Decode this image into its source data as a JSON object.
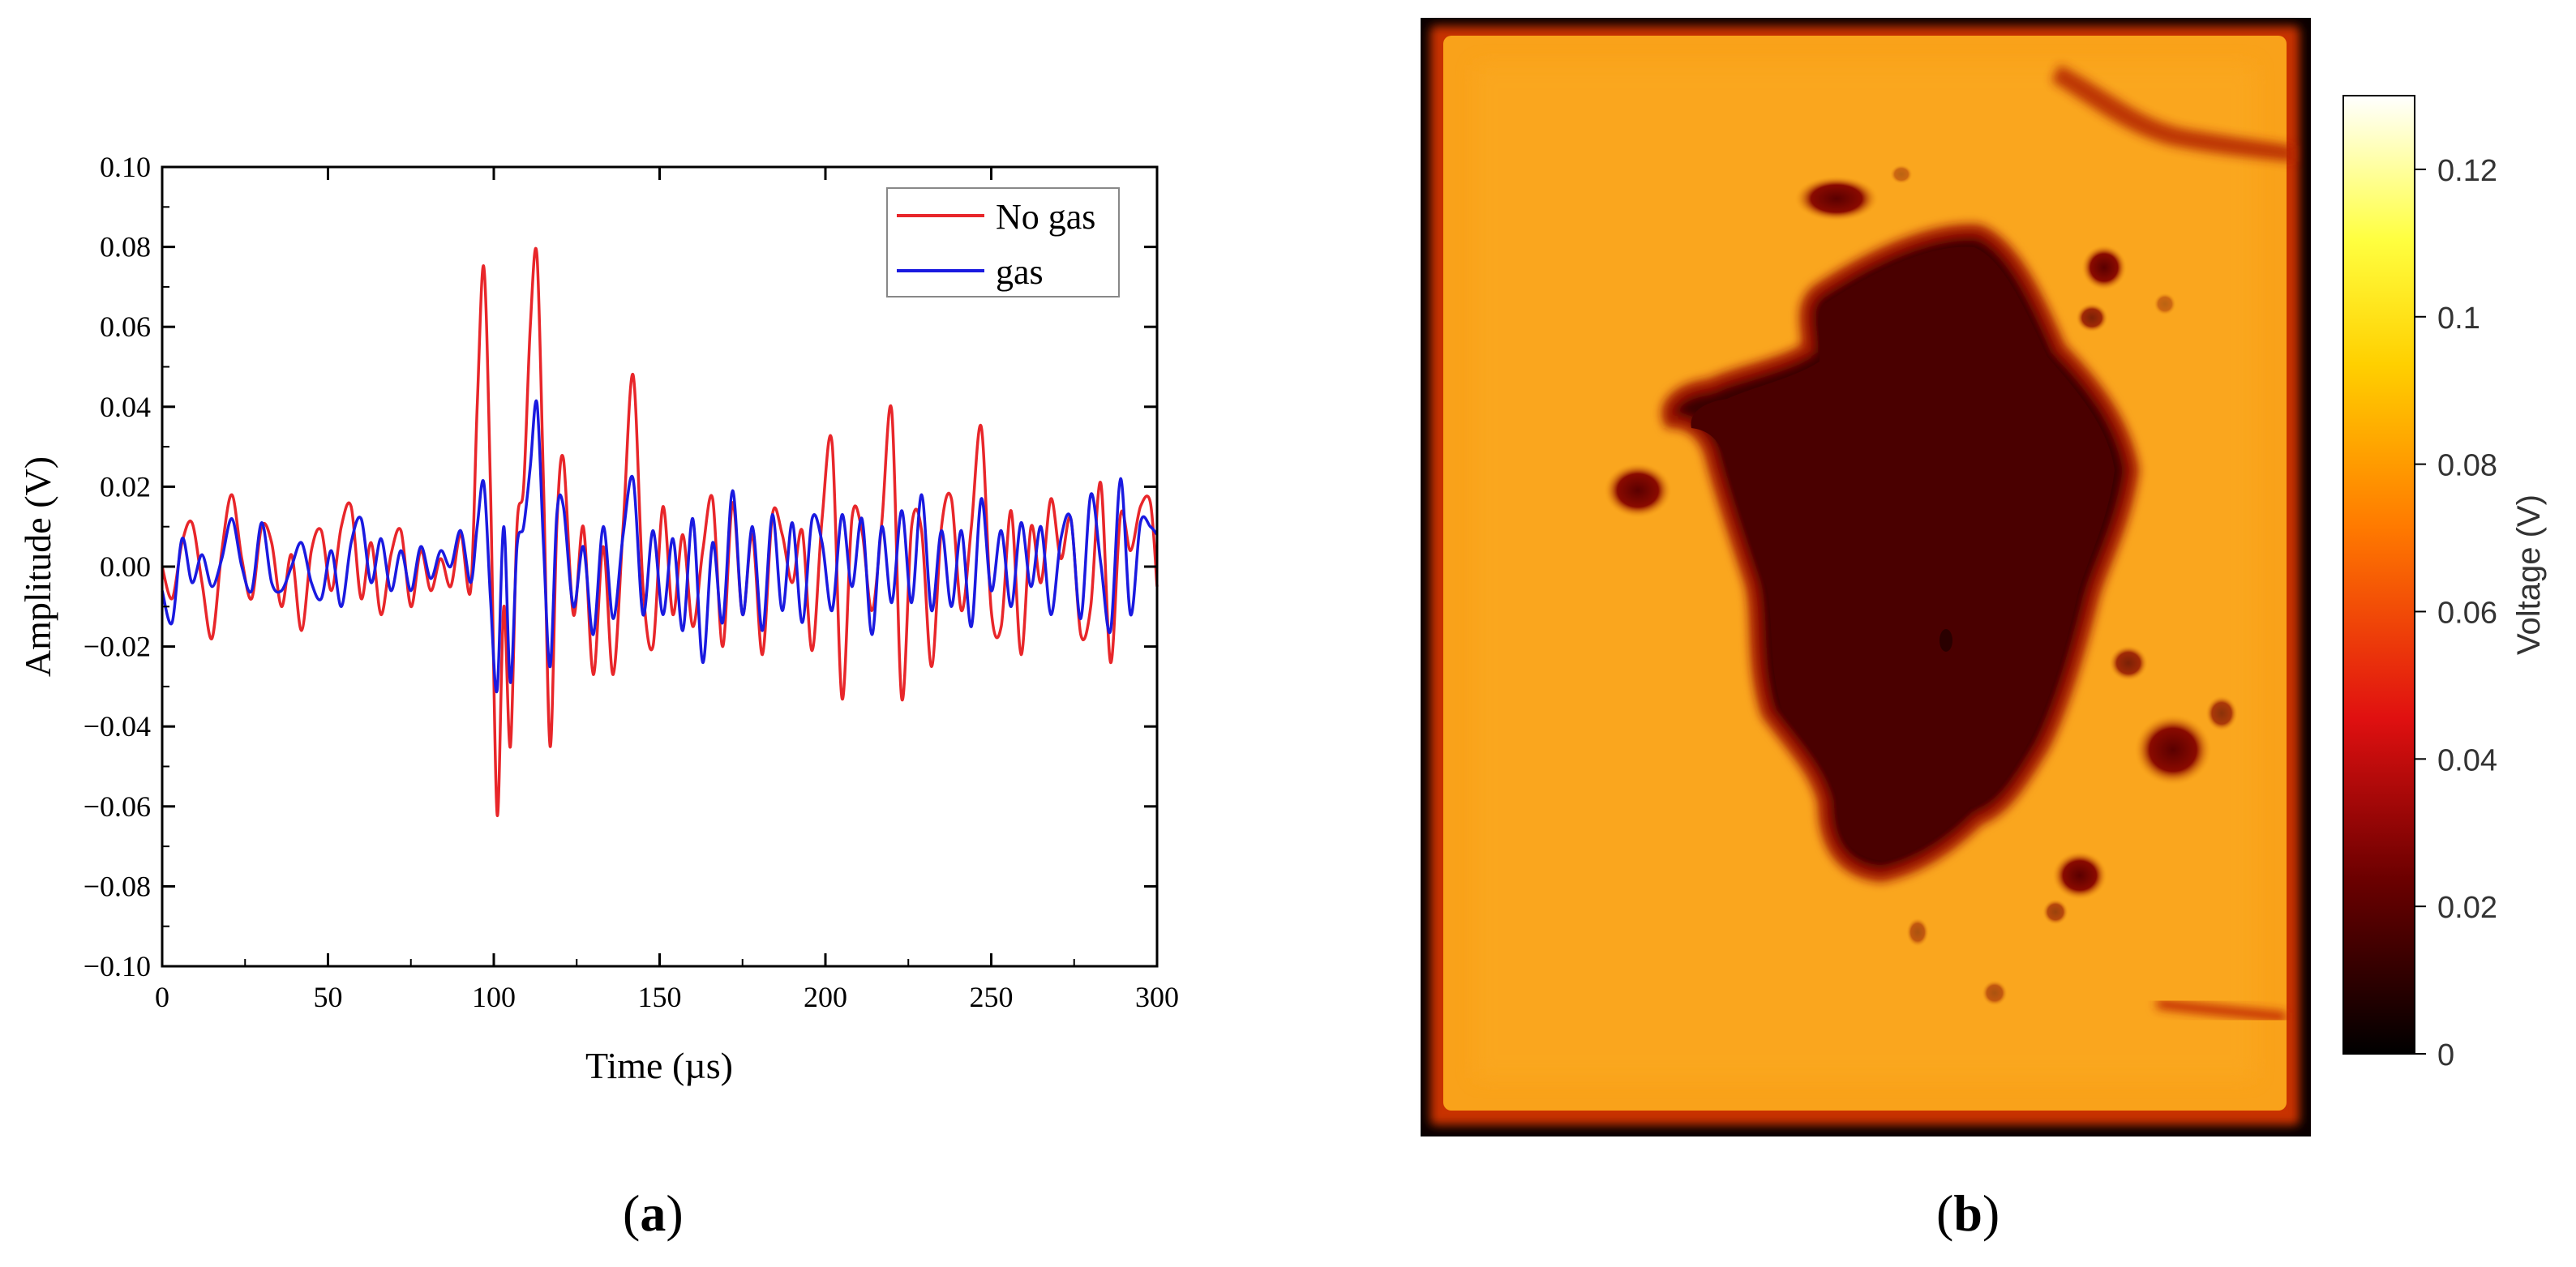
{
  "captions": {
    "a": "a",
    "b": "b"
  },
  "chart_data": [
    {
      "type": "line",
      "title": "",
      "xlabel": "Time (µs)",
      "ylabel": "Amplitude (V)",
      "xlim": [
        0,
        300
      ],
      "ylim": [
        -0.1,
        0.1
      ],
      "x_ticks": [
        "0",
        "50",
        "100",
        "150",
        "200",
        "250",
        "300"
      ],
      "y_ticks": [
        "−0.10",
        "−0.08",
        "−0.06",
        "−0.04",
        "−0.02",
        "0.00",
        "0.02",
        "0.04",
        "0.06",
        "0.08",
        "0.10"
      ],
      "x_tick_values": [
        0,
        50,
        100,
        150,
        200,
        250,
        300
      ],
      "y_tick_values": [
        -0.1,
        -0.08,
        -0.06,
        -0.04,
        -0.02,
        0,
        0.02,
        0.04,
        0.06,
        0.08,
        0.1
      ],
      "legend": {
        "placement": "top-right"
      },
      "grid": false,
      "series": [
        {
          "name": "No gas",
          "color": "#e8262a",
          "x": [
            0,
            3,
            6,
            9,
            12,
            15,
            18,
            21,
            24,
            27,
            30,
            33,
            36,
            39,
            42,
            45,
            48,
            51,
            54,
            57,
            60,
            63,
            66,
            69,
            72,
            75,
            78,
            81,
            84,
            87,
            90,
            93,
            95,
            97,
            99,
            101,
            103,
            105,
            107,
            109,
            111,
            113,
            115,
            117,
            119,
            121,
            124,
            127,
            130,
            133,
            136,
            139,
            142,
            145,
            148,
            151,
            154,
            157,
            160,
            163,
            166,
            169,
            172,
            175,
            178,
            181,
            184,
            187,
            190,
            193,
            196,
            199,
            202,
            205,
            208,
            211,
            214,
            217,
            220,
            223,
            226,
            229,
            232,
            235,
            238,
            241,
            244,
            247,
            250,
            253,
            256,
            259,
            262,
            265,
            268,
            271,
            274,
            277,
            280,
            283,
            286,
            289,
            292,
            295,
            298,
            300
          ],
          "y": [
            0.0,
            -0.008,
            0.006,
            0.011,
            -0.004,
            -0.018,
            0.004,
            0.018,
            0.002,
            -0.008,
            0.01,
            0.006,
            -0.01,
            0.003,
            -0.016,
            0.004,
            0.009,
            -0.006,
            0.01,
            0.015,
            -0.008,
            0.006,
            -0.012,
            0.003,
            0.009,
            -0.01,
            0.004,
            -0.006,
            0.002,
            -0.005,
            0.008,
            -0.006,
            0.04,
            0.075,
            0.02,
            -0.062,
            -0.01,
            -0.045,
            0.01,
            0.02,
            0.06,
            0.078,
            0.02,
            -0.045,
            0.01,
            0.027,
            -0.012,
            0.01,
            -0.027,
            0.005,
            -0.027,
            0.01,
            0.048,
            -0.005,
            -0.02,
            0.015,
            -0.012,
            0.008,
            -0.015,
            0.004,
            0.017,
            -0.02,
            0.016,
            -0.012,
            0.008,
            -0.022,
            0.013,
            0.008,
            -0.004,
            0.009,
            -0.021,
            0.012,
            0.031,
            -0.033,
            0.012,
            0.009,
            -0.011,
            0.011,
            0.039,
            -0.033,
            0.01,
            0.009,
            -0.025,
            0.01,
            0.017,
            -0.011,
            0.01,
            0.035,
            -0.011,
            -0.015,
            0.014,
            -0.022,
            0.01,
            -0.004,
            0.017,
            0.002,
            0.012,
            -0.017,
            -0.01,
            0.021,
            -0.024,
            0.013,
            0.004,
            0.015,
            0.016,
            -0.005
          ]
        },
        {
          "name": "gas",
          "color": "#1a1ae0",
          "x": [
            0,
            3,
            6,
            9,
            12,
            15,
            18,
            21,
            24,
            27,
            30,
            33,
            36,
            39,
            42,
            45,
            48,
            51,
            54,
            57,
            60,
            63,
            66,
            69,
            72,
            75,
            78,
            81,
            84,
            87,
            90,
            93,
            95,
            97,
            99,
            101,
            103,
            105,
            107,
            109,
            111,
            113,
            115,
            117,
            119,
            121,
            124,
            127,
            130,
            133,
            136,
            139,
            142,
            145,
            148,
            151,
            154,
            157,
            160,
            163,
            166,
            169,
            172,
            175,
            178,
            181,
            184,
            187,
            190,
            193,
            196,
            199,
            202,
            205,
            208,
            211,
            214,
            217,
            220,
            223,
            226,
            229,
            232,
            235,
            238,
            241,
            244,
            247,
            250,
            253,
            256,
            259,
            262,
            265,
            268,
            271,
            274,
            277,
            280,
            283,
            286,
            289,
            292,
            295,
            298,
            300
          ],
          "y": [
            -0.006,
            -0.014,
            0.007,
            -0.004,
            0.003,
            -0.005,
            0.002,
            0.012,
            0.0,
            -0.006,
            0.011,
            -0.004,
            -0.006,
            0.0,
            0.006,
            -0.004,
            -0.008,
            0.004,
            -0.01,
            0.006,
            0.012,
            -0.004,
            0.007,
            -0.006,
            0.004,
            -0.006,
            0.005,
            -0.003,
            0.004,
            0.0,
            0.009,
            -0.004,
            0.01,
            0.021,
            -0.008,
            -0.031,
            0.01,
            -0.029,
            0.005,
            0.01,
            0.025,
            0.041,
            0.005,
            -0.025,
            0.013,
            0.015,
            -0.01,
            0.005,
            -0.017,
            0.01,
            -0.013,
            0.008,
            0.022,
            -0.012,
            0.009,
            -0.012,
            0.007,
            -0.016,
            0.012,
            -0.024,
            0.006,
            -0.014,
            0.019,
            -0.012,
            0.01,
            -0.016,
            0.013,
            -0.011,
            0.011,
            -0.014,
            0.012,
            0.006,
            -0.011,
            0.013,
            -0.005,
            0.012,
            -0.017,
            0.01,
            -0.009,
            0.014,
            -0.009,
            0.018,
            -0.011,
            0.009,
            -0.01,
            0.009,
            -0.015,
            0.017,
            -0.006,
            0.009,
            -0.01,
            0.011,
            -0.005,
            0.01,
            -0.012,
            0.007,
            0.012,
            -0.013,
            0.018,
            0.001,
            -0.016,
            0.022,
            -0.012,
            0.011,
            0.01,
            0.008
          ]
        }
      ]
    },
    {
      "type": "heatmap",
      "title": "",
      "colorbar_label": "Voltage (V)",
      "colorbar_ticks": [
        "0",
        "0.02",
        "0.04",
        "0.06",
        "0.08",
        "0.1",
        "0.12"
      ],
      "colorbar_tick_values": [
        0,
        0.02,
        0.04,
        0.06,
        0.08,
        0.1,
        0.12
      ],
      "value_range": [
        0,
        0.13
      ],
      "colormap": "hot",
      "colormap_stops": [
        "#000000",
        "#6a0000",
        "#e01010",
        "#ff7a00",
        "#ffd000",
        "#ffff40",
        "#ffffff"
      ],
      "background_value": 0.078,
      "defect_value": 0.012,
      "edge_value": 0.03
    }
  ]
}
